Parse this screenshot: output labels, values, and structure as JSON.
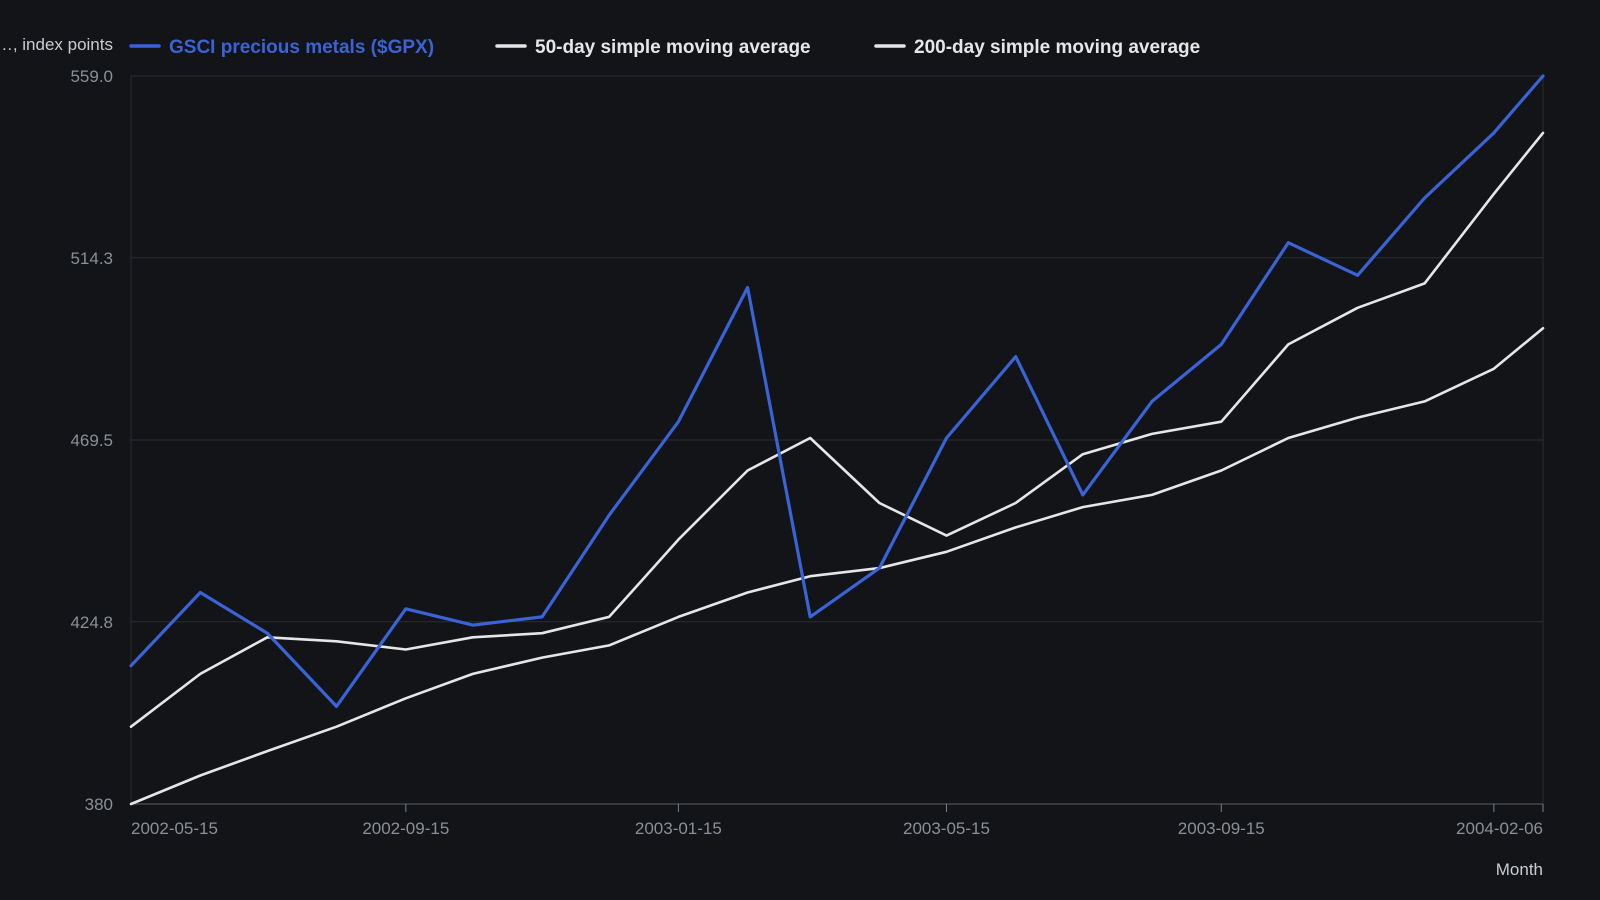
{
  "chart_data": {
    "type": "line",
    "ylabel": "…, index points",
    "xlabel": "Month",
    "ylim": [
      380,
      559
    ],
    "y_ticks": [
      "559.0",
      "514.3",
      "469.5",
      "424.8",
      "380"
    ],
    "y_tick_values": [
      559.0,
      514.3,
      469.5,
      424.8,
      380
    ],
    "x_ticks": [
      "2002-05-15",
      "2002-09-15",
      "2003-01-15",
      "2003-05-15",
      "2003-09-15",
      "2004-02-06"
    ],
    "x_tick_dates": [
      "2002-05-15",
      "2002-09-15",
      "2003-01-15",
      "2003-05-15",
      "2003-09-15",
      "2004-02-06"
    ],
    "x_tick_marks": [
      "2002-09-15",
      "2003-01-15",
      "2003-05-15",
      "2003-09-15",
      "2004-01-15"
    ],
    "x_range": [
      "2002-05-15",
      "2004-02-06"
    ],
    "x": [
      "2002-05-15",
      "2002-06-15",
      "2002-07-15",
      "2002-08-15",
      "2002-09-15",
      "2002-10-15",
      "2002-11-15",
      "2002-12-15",
      "2003-01-15",
      "2003-02-15",
      "2003-03-15",
      "2003-04-15",
      "2003-05-15",
      "2003-06-15",
      "2003-07-15",
      "2003-08-15",
      "2003-09-15",
      "2003-10-15",
      "2003-11-15",
      "2003-12-15",
      "2004-01-15",
      "2004-02-06"
    ],
    "legend_position": "top-left",
    "grid": true,
    "series": [
      {
        "name": "GSCI precious metals ($GPX)",
        "color": "#3a63d8",
        "values": [
          414,
          432,
          422,
          404,
          428,
          424,
          426,
          451,
          474,
          507,
          426,
          438,
          470,
          490,
          456,
          479,
          493,
          518,
          510,
          529,
          545,
          559
        ]
      },
      {
        "name": "50-day simple moving average",
        "color": "#e6e6e6",
        "values": [
          399,
          412,
          421,
          420,
          418,
          421,
          422,
          426,
          445,
          462,
          470,
          454,
          446,
          454,
          466,
          471,
          474,
          493,
          502,
          508,
          530,
          545
        ]
      },
      {
        "name": "200-day simple moving average",
        "color": "#e6e6e6",
        "values": [
          380,
          387,
          393,
          399,
          406,
          412,
          416,
          419,
          426,
          432,
          436,
          438,
          442,
          448,
          453,
          456,
          462,
          470,
          475,
          479,
          487,
          497
        ]
      }
    ]
  }
}
